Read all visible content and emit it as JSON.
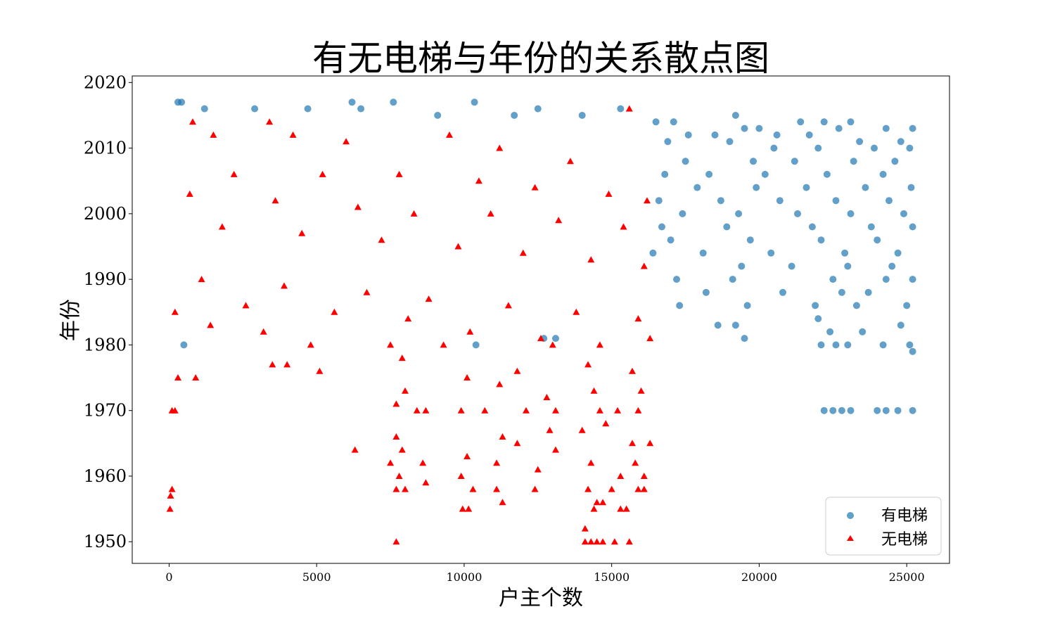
{
  "chart_data": {
    "type": "scatter",
    "title": "有无电梯与年份的关系散点图",
    "xlabel": "户主个数",
    "ylabel": "年份",
    "xlim": [
      -1250,
      26450
    ],
    "ylim": [
      1946.7,
      2021.0
    ],
    "xticks": [
      0,
      5000,
      10000,
      15000,
      20000,
      25000
    ],
    "yticks": [
      1950,
      1960,
      1970,
      1980,
      1990,
      2000,
      2010,
      2020
    ],
    "grid": false,
    "legend_position": "lower-right",
    "series": [
      {
        "name": "有电梯",
        "marker": "circle",
        "color": "#1f77b4",
        "points": [
          [
            300,
            2017
          ],
          [
            420,
            2017
          ],
          [
            6200,
            2017
          ],
          [
            7600,
            2017
          ],
          [
            10350,
            2017
          ],
          [
            1200,
            2016
          ],
          [
            2900,
            2016
          ],
          [
            4700,
            2016
          ],
          [
            6500,
            2016
          ],
          [
            12500,
            2016
          ],
          [
            15300,
            2016
          ],
          [
            9100,
            2015
          ],
          [
            11700,
            2015
          ],
          [
            14000,
            2015
          ],
          [
            19200,
            2015
          ],
          [
            16500,
            2014
          ],
          [
            17100,
            2014
          ],
          [
            21400,
            2014
          ],
          [
            22200,
            2014
          ],
          [
            23100,
            2014
          ],
          [
            19500,
            2013
          ],
          [
            20000,
            2013
          ],
          [
            22700,
            2013
          ],
          [
            24300,
            2013
          ],
          [
            25200,
            2013
          ],
          [
            17600,
            2012
          ],
          [
            18500,
            2012
          ],
          [
            20600,
            2012
          ],
          [
            21700,
            2012
          ],
          [
            16900,
            2011
          ],
          [
            19000,
            2011
          ],
          [
            23400,
            2011
          ],
          [
            24800,
            2011
          ],
          [
            20500,
            2010
          ],
          [
            22000,
            2010
          ],
          [
            23900,
            2010
          ],
          [
            25100,
            2010
          ],
          [
            17500,
            2008
          ],
          [
            19800,
            2008
          ],
          [
            21200,
            2008
          ],
          [
            23200,
            2008
          ],
          [
            24600,
            2008
          ],
          [
            16800,
            2006
          ],
          [
            18300,
            2006
          ],
          [
            20200,
            2006
          ],
          [
            22300,
            2006
          ],
          [
            24200,
            2006
          ],
          [
            17900,
            2004
          ],
          [
            19900,
            2004
          ],
          [
            21600,
            2004
          ],
          [
            23600,
            2004
          ],
          [
            25150,
            2004
          ],
          [
            16600,
            2002
          ],
          [
            18700,
            2002
          ],
          [
            20700,
            2002
          ],
          [
            22600,
            2002
          ],
          [
            24400,
            2002
          ],
          [
            17400,
            2000
          ],
          [
            19300,
            2000
          ],
          [
            21300,
            2000
          ],
          [
            23100,
            2000
          ],
          [
            24900,
            2000
          ],
          [
            16700,
            1998
          ],
          [
            18900,
            1998
          ],
          [
            21800,
            1998
          ],
          [
            23800,
            1998
          ],
          [
            25200,
            1998
          ],
          [
            17000,
            1996
          ],
          [
            19700,
            1996
          ],
          [
            22100,
            1996
          ],
          [
            24000,
            1996
          ],
          [
            16400,
            1994
          ],
          [
            18100,
            1994
          ],
          [
            20400,
            1994
          ],
          [
            22900,
            1994
          ],
          [
            24700,
            1994
          ],
          [
            19400,
            1992
          ],
          [
            21100,
            1992
          ],
          [
            23000,
            1992
          ],
          [
            24500,
            1992
          ],
          [
            17200,
            1990
          ],
          [
            19100,
            1990
          ],
          [
            22500,
            1990
          ],
          [
            24300,
            1990
          ],
          [
            25200,
            1990
          ],
          [
            18200,
            1988
          ],
          [
            20800,
            1988
          ],
          [
            22800,
            1988
          ],
          [
            23700,
            1988
          ],
          [
            17300,
            1986
          ],
          [
            19600,
            1986
          ],
          [
            21900,
            1986
          ],
          [
            23300,
            1986
          ],
          [
            25000,
            1986
          ],
          [
            18600,
            1983
          ],
          [
            19200,
            1983
          ],
          [
            22000,
            1984
          ],
          [
            22400,
            1982
          ],
          [
            23500,
            1982
          ],
          [
            24800,
            1983
          ],
          [
            19500,
            1981
          ],
          [
            22100,
            1980
          ],
          [
            22600,
            1980
          ],
          [
            23000,
            1980
          ],
          [
            24200,
            1980
          ],
          [
            25100,
            1980
          ],
          [
            25200,
            1979
          ],
          [
            22200,
            1970
          ],
          [
            22500,
            1970
          ],
          [
            22800,
            1970
          ],
          [
            23100,
            1970
          ],
          [
            24000,
            1970
          ],
          [
            24300,
            1970
          ],
          [
            24700,
            1970
          ],
          [
            25200,
            1970
          ],
          [
            500,
            1980
          ],
          [
            10400,
            1980
          ],
          [
            12700,
            1981
          ],
          [
            13100,
            1981
          ]
        ]
      },
      {
        "name": "无电梯",
        "marker": "triangle",
        "color": "#ff0000",
        "points": [
          [
            15600,
            2016
          ],
          [
            800,
            2014
          ],
          [
            3400,
            2014
          ],
          [
            1500,
            2012
          ],
          [
            4200,
            2012
          ],
          [
            6000,
            2011
          ],
          [
            9500,
            2012
          ],
          [
            11200,
            2010
          ],
          [
            13600,
            2008
          ],
          [
            2200,
            2006
          ],
          [
            5200,
            2006
          ],
          [
            7800,
            2006
          ],
          [
            10500,
            2005
          ],
          [
            12400,
            2004
          ],
          [
            14900,
            2003
          ],
          [
            16200,
            2002
          ],
          [
            700,
            2003
          ],
          [
            3600,
            2002
          ],
          [
            6400,
            2001
          ],
          [
            8300,
            2000
          ],
          [
            10900,
            2000
          ],
          [
            13200,
            1999
          ],
          [
            15400,
            1998
          ],
          [
            1800,
            1998
          ],
          [
            4500,
            1997
          ],
          [
            7200,
            1996
          ],
          [
            9800,
            1995
          ],
          [
            12000,
            1994
          ],
          [
            14300,
            1993
          ],
          [
            16100,
            1992
          ],
          [
            1100,
            1990
          ],
          [
            3900,
            1989
          ],
          [
            6700,
            1988
          ],
          [
            8800,
            1987
          ],
          [
            11500,
            1986
          ],
          [
            13800,
            1985
          ],
          [
            15900,
            1984
          ],
          [
            2600,
            1986
          ],
          [
            5600,
            1985
          ],
          [
            8100,
            1984
          ],
          [
            10200,
            1982
          ],
          [
            12600,
            1981
          ],
          [
            14600,
            1980
          ],
          [
            16300,
            1981
          ],
          [
            200,
            1985
          ],
          [
            1400,
            1983
          ],
          [
            3200,
            1982
          ],
          [
            4800,
            1980
          ],
          [
            7500,
            1980
          ],
          [
            9300,
            1980
          ],
          [
            13000,
            1980
          ],
          [
            900,
            1975
          ],
          [
            3500,
            1977
          ],
          [
            4000,
            1977
          ],
          [
            5100,
            1976
          ],
          [
            7900,
            1978
          ],
          [
            10100,
            1975
          ],
          [
            11800,
            1976
          ],
          [
            14200,
            1977
          ],
          [
            15700,
            1976
          ],
          [
            300,
            1975
          ],
          [
            7700,
            1971
          ],
          [
            8000,
            1973
          ],
          [
            11200,
            1974
          ],
          [
            12800,
            1972
          ],
          [
            14400,
            1973
          ],
          [
            16000,
            1973
          ],
          [
            100,
            1970
          ],
          [
            200,
            1970
          ],
          [
            8400,
            1970
          ],
          [
            8700,
            1970
          ],
          [
            9900,
            1970
          ],
          [
            10700,
            1970
          ],
          [
            12100,
            1970
          ],
          [
            13100,
            1970
          ],
          [
            14600,
            1970
          ],
          [
            15200,
            1970
          ],
          [
            15900,
            1970
          ],
          [
            6300,
            1964
          ],
          [
            7700,
            1966
          ],
          [
            7900,
            1964
          ],
          [
            11300,
            1966
          ],
          [
            11800,
            1965
          ],
          [
            12900,
            1967
          ],
          [
            13100,
            1964
          ],
          [
            14000,
            1967
          ],
          [
            14800,
            1968
          ],
          [
            15700,
            1965
          ],
          [
            16300,
            1965
          ],
          [
            7500,
            1962
          ],
          [
            7800,
            1960
          ],
          [
            8600,
            1962
          ],
          [
            8700,
            1959
          ],
          [
            9900,
            1960
          ],
          [
            10100,
            1963
          ],
          [
            11100,
            1962
          ],
          [
            12500,
            1961
          ],
          [
            14300,
            1962
          ],
          [
            15300,
            1960
          ],
          [
            15800,
            1962
          ],
          [
            16100,
            1960
          ],
          [
            50,
            1957
          ],
          [
            100,
            1958
          ],
          [
            7700,
            1958
          ],
          [
            8000,
            1958
          ],
          [
            10300,
            1958
          ],
          [
            11100,
            1958
          ],
          [
            12400,
            1958
          ],
          [
            14200,
            1958
          ],
          [
            14500,
            1956
          ],
          [
            15000,
            1958
          ],
          [
            15900,
            1958
          ],
          [
            16100,
            1958
          ],
          [
            30,
            1955
          ],
          [
            9950,
            1955
          ],
          [
            10150,
            1955
          ],
          [
            11300,
            1956
          ],
          [
            14100,
            1952
          ],
          [
            14400,
            1955
          ],
          [
            14700,
            1956
          ],
          [
            15300,
            1955
          ],
          [
            15500,
            1955
          ],
          [
            7700,
            1950
          ],
          [
            14100,
            1950
          ],
          [
            14300,
            1950
          ],
          [
            14500,
            1950
          ],
          [
            14700,
            1950
          ],
          [
            15100,
            1950
          ],
          [
            15600,
            1950
          ]
        ]
      }
    ]
  }
}
